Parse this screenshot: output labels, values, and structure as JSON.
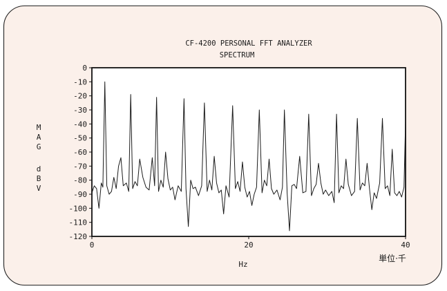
{
  "colors": {
    "panel_background": "#fbf0ea",
    "panel_border": "#222222",
    "plot_background": "#ffffff",
    "trace": "#1b1b1b",
    "frame": "#111111",
    "text": "#1b1b1b"
  },
  "chart_data": {
    "type": "line",
    "title": "CF-4200 PERSONAL FFT ANALYZER",
    "subtitle": "SPECTRUM",
    "ylabel_lines": [
      "MAG",
      "dBV"
    ],
    "xlabel": "Hz",
    "x_unit_note": "単位·千",
    "xlim": [
      0,
      40
    ],
    "ylim": [
      -120,
      0
    ],
    "x_ticks": [
      {
        "value": 0,
        "label": "0"
      },
      {
        "value": 20,
        "label": "20"
      },
      {
        "value": 40,
        "label": "40"
      }
    ],
    "y_ticks": [
      {
        "value": 0,
        "label": "0"
      },
      {
        "value": -10,
        "label": "-10"
      },
      {
        "value": -20,
        "label": "-20"
      },
      {
        "value": -30,
        "label": "-30"
      },
      {
        "value": -40,
        "label": "-40"
      },
      {
        "value": -50,
        "label": "-50"
      },
      {
        "value": -60,
        "label": "-60"
      },
      {
        "value": -70,
        "label": "-70"
      },
      {
        "value": -80,
        "label": "-80"
      },
      {
        "value": -90,
        "label": "-90"
      },
      {
        "value": -100,
        "label": "-100"
      },
      {
        "value": -110,
        "label": "-110"
      },
      {
        "value": -120,
        "label": "-120"
      }
    ],
    "grid": false,
    "legend": "none",
    "series": [
      {
        "x": [
          0.0,
          0.3,
          0.6,
          0.9,
          1.2,
          1.4,
          1.65,
          1.9,
          2.2,
          2.5,
          2.8,
          3.1,
          3.4,
          3.7,
          4.0,
          4.4,
          4.7,
          4.95,
          5.2,
          5.5,
          5.8,
          6.1,
          6.5,
          6.9,
          7.3,
          7.7,
          8.0,
          8.25,
          8.5,
          8.8,
          9.1,
          9.4,
          9.7,
          10.0,
          10.3,
          10.6,
          11.0,
          11.4,
          11.75,
          12.0,
          12.3,
          12.6,
          12.9,
          13.2,
          13.6,
          14.0,
          14.35,
          14.7,
          15.0,
          15.3,
          15.6,
          15.9,
          16.2,
          16.5,
          16.8,
          17.1,
          17.5,
          17.95,
          18.3,
          18.6,
          18.9,
          19.2,
          19.5,
          19.8,
          20.1,
          20.4,
          20.7,
          21.0,
          21.35,
          21.7,
          22.0,
          22.3,
          22.6,
          22.9,
          23.2,
          23.6,
          24.0,
          24.3,
          24.55,
          24.9,
          25.2,
          25.5,
          25.8,
          26.1,
          26.5,
          26.9,
          27.3,
          27.65,
          28.0,
          28.3,
          28.6,
          28.9,
          29.2,
          29.5,
          29.8,
          30.2,
          30.6,
          30.9,
          31.2,
          31.5,
          31.8,
          32.1,
          32.4,
          32.7,
          33.1,
          33.5,
          33.85,
          34.2,
          34.5,
          34.8,
          35.1,
          35.4,
          35.7,
          36.0,
          36.3,
          36.7,
          37.05,
          37.4,
          37.7,
          38.0,
          38.3,
          38.6,
          38.9,
          39.2,
          39.5,
          39.8,
          40.0
        ],
        "y": [
          -89,
          -84,
          -86,
          -100,
          -82,
          -85,
          -10,
          -84,
          -90,
          -88,
          -78,
          -86,
          -70,
          -64,
          -84,
          -82,
          -88,
          -19,
          -86,
          -81,
          -84,
          -65,
          -78,
          -85,
          -87,
          -64,
          -84,
          -21,
          -88,
          -80,
          -85,
          -60,
          -79,
          -87,
          -85,
          -94,
          -84,
          -88,
          -22,
          -86,
          -113,
          -80,
          -86,
          -85,
          -91,
          -84,
          -25,
          -88,
          -80,
          -87,
          -63,
          -82,
          -89,
          -87,
          -104,
          -84,
          -92,
          -27,
          -86,
          -81,
          -88,
          -67,
          -85,
          -92,
          -88,
          -98,
          -90,
          -85,
          -30,
          -89,
          -80,
          -84,
          -65,
          -86,
          -90,
          -87,
          -94,
          -85,
          -30,
          -89,
          -116,
          -84,
          -83,
          -86,
          -63,
          -89,
          -88,
          -33,
          -91,
          -86,
          -83,
          -68,
          -82,
          -90,
          -87,
          -91,
          -88,
          -96,
          -33,
          -89,
          -84,
          -86,
          -65,
          -83,
          -91,
          -88,
          -36,
          -87,
          -82,
          -84,
          -68,
          -86,
          -101,
          -89,
          -93,
          -82,
          -36,
          -86,
          -84,
          -91,
          -58,
          -89,
          -91,
          -88,
          -92,
          -85,
          -38
        ]
      }
    ]
  }
}
